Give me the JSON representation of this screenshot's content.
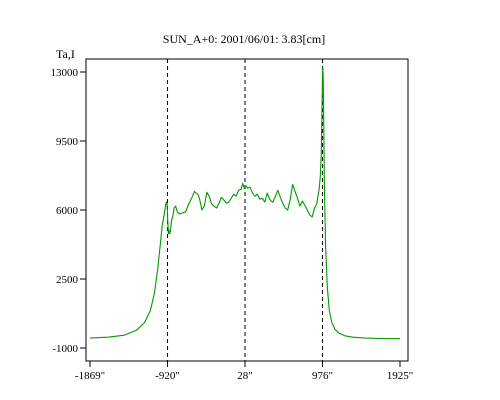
{
  "chart_data": {
    "type": "line",
    "title": "SUN_A+0: 2001/06/01: 3.83[cm]",
    "ylabel": "Ta,I",
    "xlabel": "",
    "xlim": [
      -1869,
      1925
    ],
    "ylim": [
      -1000,
      13500
    ],
    "x_ticks": [
      {
        "value": -1869,
        "label": "-1869\""
      },
      {
        "value": -920,
        "label": "-920\""
      },
      {
        "value": 28,
        "label": "28\""
      },
      {
        "value": 976,
        "label": "976\""
      },
      {
        "value": 1925,
        "label": "1925\""
      }
    ],
    "y_ticks": [
      {
        "value": -1000,
        "label": "-1000"
      },
      {
        "value": 2500,
        "label": "2500"
      },
      {
        "value": 6000,
        "label": "6000"
      },
      {
        "value": 9500,
        "label": "9500"
      },
      {
        "value": 13000,
        "label": "13000"
      }
    ],
    "vlines": [
      -920,
      28,
      976
    ],
    "grid": false,
    "series": [
      {
        "color": "#009900",
        "x": [
          -1869,
          -1650,
          -1450,
          -1300,
          -1200,
          -1130,
          -1080,
          -1040,
          -1010,
          -985,
          -960,
          -945,
          -935,
          -925,
          -918,
          -910,
          -905,
          -895,
          -885,
          -870,
          -855,
          -840,
          -820,
          -800,
          -770,
          -740,
          -700,
          -660,
          -620,
          -590,
          -570,
          -550,
          -530,
          -500,
          -470,
          -440,
          -410,
          -380,
          -350,
          -320,
          -290,
          -260,
          -230,
          -200,
          -170,
          -140,
          -110,
          -80,
          -50,
          -20,
          0,
          20,
          30,
          45,
          60,
          90,
          120,
          150,
          180,
          210,
          240,
          270,
          300,
          330,
          350,
          370,
          400,
          430,
          460,
          490,
          520,
          550,
          580,
          610,
          640,
          670,
          700,
          730,
          760,
          790,
          820,
          850,
          880,
          905,
          920,
          935,
          950,
          960,
          968,
          975,
          980,
          985,
          992,
          1000,
          1015,
          1035,
          1060,
          1090,
          1130,
          1180,
          1250,
          1350,
          1500,
          1700,
          1925
        ],
        "y": [
          -500,
          -450,
          -350,
          -100,
          300,
          900,
          1800,
          3000,
          4200,
          5200,
          5800,
          6200,
          6400,
          6300,
          5500,
          4800,
          5000,
          4800,
          4900,
          5500,
          5700,
          6100,
          6200,
          5900,
          5800,
          5850,
          5900,
          6300,
          6650,
          6950,
          6850,
          6800,
          6600,
          6000,
          6200,
          6900,
          6700,
          6300,
          6200,
          6100,
          6350,
          6650,
          6500,
          6350,
          6400,
          6600,
          6800,
          6700,
          7000,
          7050,
          7350,
          7100,
          7250,
          7200,
          7100,
          7150,
          6850,
          6700,
          6800,
          6550,
          6600,
          6400,
          6850,
          6550,
          6450,
          6400,
          6700,
          7000,
          6650,
          6350,
          6100,
          6000,
          6500,
          7300,
          6950,
          6600,
          6200,
          6450,
          6250,
          6000,
          5750,
          5650,
          6100,
          6300,
          6700,
          7050,
          7700,
          8800,
          10500,
          12500,
          13250,
          12700,
          10200,
          7200,
          4200,
          2100,
          900,
          300,
          -50,
          -250,
          -380,
          -450,
          -500,
          -520,
          -530
        ]
      }
    ]
  }
}
